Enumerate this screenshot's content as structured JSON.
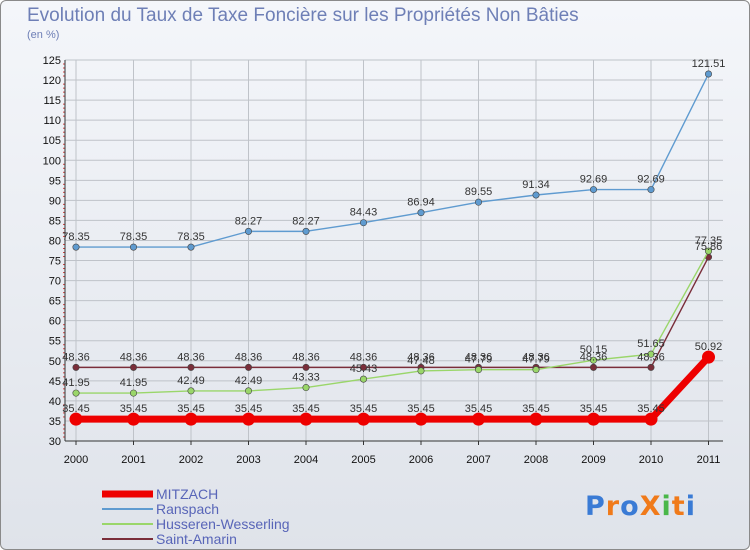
{
  "chart_data": {
    "type": "line",
    "title": "Evolution du Taux de Taxe Foncière sur les Propriétés Non Bâties",
    "ylabel": "(en %)",
    "xlabel": "",
    "ylim": [
      30,
      125
    ],
    "yticks": [
      30,
      35,
      40,
      45,
      50,
      55,
      60,
      65,
      70,
      75,
      80,
      85,
      90,
      95,
      100,
      105,
      110,
      115,
      120,
      125
    ],
    "categories": [
      "2000",
      "2001",
      "2002",
      "2003",
      "2004",
      "2005",
      "2006",
      "2007",
      "2008",
      "2009",
      "2010",
      "2011"
    ],
    "series": [
      {
        "name": "MITZACH",
        "color": "#ee0000",
        "values": [
          35.45,
          35.45,
          35.45,
          35.45,
          35.45,
          35.45,
          35.45,
          35.45,
          35.45,
          35.45,
          35.45,
          50.92
        ],
        "labels": [
          "35.45",
          "35.45",
          "35.45",
          "35.45",
          "35.45",
          "35.45",
          "35.45",
          "35.45",
          "35.45",
          "35.45",
          "35.45",
          "50.92"
        ]
      },
      {
        "name": "Ranspach",
        "color": "#5f9bd0",
        "values": [
          78.35,
          78.35,
          78.35,
          82.27,
          82.27,
          84.43,
          86.94,
          89.55,
          91.34,
          92.69,
          92.69,
          121.51
        ],
        "labels": [
          "78.35",
          "78.35",
          "78.35",
          "82.27",
          "82.27",
          "84.43",
          "86.94",
          "89.55",
          "91.34",
          "92.69",
          "92.69",
          "121.51"
        ]
      },
      {
        "name": "Husseren-Wesserling",
        "color": "#9ad66a",
        "values": [
          41.95,
          41.95,
          42.49,
          42.49,
          43.33,
          45.43,
          47.48,
          47.79,
          47.79,
          50.15,
          51.65,
          77.35
        ],
        "labels": [
          "41.95",
          "41.95",
          "42.49",
          "42.49",
          "43.33",
          "45.43",
          "47.48",
          "47.79",
          "47.79",
          "50.15",
          "51.65",
          "77.35"
        ]
      },
      {
        "name": "Saint-Amarin",
        "color": "#7a2e3a",
        "values": [
          48.36,
          48.36,
          48.36,
          48.36,
          48.36,
          48.36,
          48.36,
          48.36,
          48.36,
          48.36,
          48.36,
          75.86
        ],
        "labels": [
          "48.36",
          "48.36",
          "48.36",
          "48.36",
          "48.36",
          "48.36",
          "48.36",
          "48.36",
          "48.36",
          "48.36",
          "48.36",
          "75.86"
        ]
      }
    ],
    "legend_position": "bottom-left",
    "grid": true
  },
  "brand": {
    "logo_text": "ProXiti",
    "logo_colors": [
      "#3a7bd5",
      "#f07a1a",
      "#3a7bd5",
      "#f07a1a",
      "#49b749",
      "#f07a1a",
      "#3a7bd5"
    ]
  }
}
